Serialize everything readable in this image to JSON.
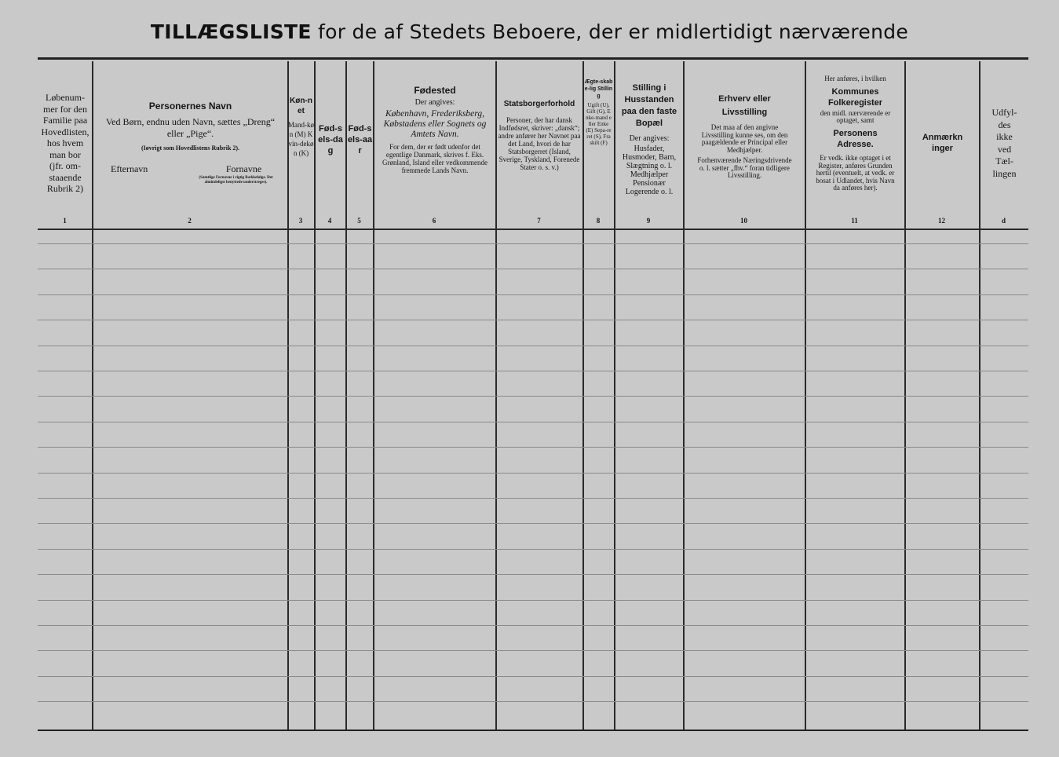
{
  "title": {
    "prefix": "TILLÆGSLISTE",
    "rest": " for de af Stedets Beboere, der er midlertidigt nærværende"
  },
  "columns": [
    {
      "number": "1",
      "lines": [
        "Løbenum-",
        "mer for den",
        "Familie paa",
        "Hovedlisten,",
        "hos hvem",
        "man bor",
        "(jfr. om-",
        "staaende",
        "Rubrik 2)"
      ]
    },
    {
      "number": "2",
      "heading": "Personernes Navn",
      "text": "Ved Børn, endnu uden Navn, sættes „Dreng“ eller „Pige“.",
      "note": "(Iøvrigt som Hovedlistens Rubrik 2).",
      "sub_left": "Efternavn",
      "sub_right": "Fornavne",
      "sub_right_note": "(Samtlige Fornavne i rigtig Rækkefølge. Det almindeligst benyttede understreges)."
    },
    {
      "number": "3",
      "heading": "Køn-net",
      "text": "Mand-køn (M) Kvin-dekøn (K)"
    },
    {
      "number": "4",
      "heading": "Fød-sels-dag"
    },
    {
      "number": "5",
      "heading": "Fød-sels-aar"
    },
    {
      "number": "6",
      "heading": "Fødested",
      "text": "Der angives:",
      "italic": "København, Frederiksberg, Købstadens eller Sognets og Amtets Navn.",
      "text2": "For dem, der er født udenfor det egentlige Danmark, skrives f. Eks. Grønland, Island eller vedkommende fremmede Lands Navn."
    },
    {
      "number": "7",
      "heading": "Statsborgerforhold",
      "text": "Personer, der har dansk Indfødsret, skriver: „dansk“; andre anfører her Navnet paa det Land, hvori de har Statsborgerret (Island, Sverige, Tyskland, Forenede Stater o. s. v.)"
    },
    {
      "number": "8",
      "heading": "Ægte-skabe-lig Stilling",
      "text": "Ugift (U), Gift (G), Enke-mand eller Enke (E) Sepa-reret (S), Fraskilt (F)"
    },
    {
      "number": "9",
      "heading": "Stilling i Husstanden paa den faste Bopæl",
      "text": "Der angives:",
      "text2": "Husfader, Husmoder, Barn, Slægtning o. l. Medhjælper Pensionær Logerende o. l."
    },
    {
      "number": "10",
      "heading": "Erhverv eller Livsstilling",
      "text": "Det maa af den angivne Livsstilling kunne ses, om den paagældende er Principal eller Medhjælper.",
      "text2": "Forhenværende Næringsdrivende o. l. sætter „fhv.“ foran tidligere Livsstilling."
    },
    {
      "number": "11",
      "pre": "Her anføres, i hvilken",
      "heading": "Kommunes Folkeregister",
      "text": "den midl. nærværende er optaget, samt",
      "heading2": "Personens Adresse.",
      "text2": "Er vedk. ikke optaget i et Register, anføres Grunden hertil (eventuelt, at vedk. er bosat i Udlandet, hvis Navn da anføres her)."
    },
    {
      "number": "12",
      "heading": "Anmærkninger"
    },
    {
      "number": "d",
      "lines": [
        "Udfyl-",
        "des",
        "ikke",
        "ved",
        "Tæl-",
        "lingen"
      ]
    }
  ],
  "colors": {
    "paper": "#c9c9c9",
    "ink": "#161616"
  }
}
